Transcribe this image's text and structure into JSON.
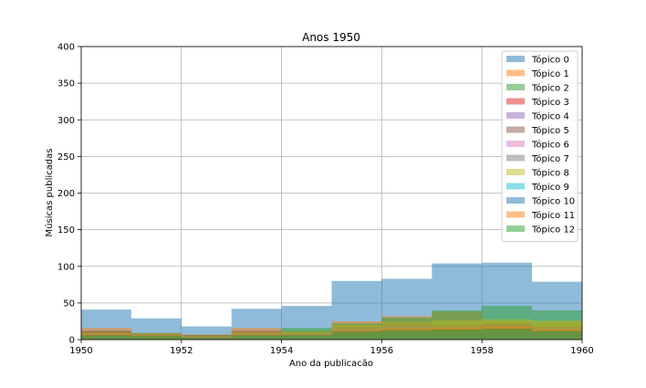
{
  "chart_data": {
    "type": "bar",
    "title": "Anos 1950",
    "xlabel": "Ano da publicacão",
    "ylabel": "Músicas publicadas",
    "xlim": [
      1950,
      1960
    ],
    "ylim": [
      0,
      400
    ],
    "xticks": [
      "1950",
      "1952",
      "1954",
      "1956",
      "1958",
      "1960"
    ],
    "yticks": [
      "0",
      "50",
      "100",
      "150",
      "200",
      "250",
      "300",
      "350",
      "400"
    ],
    "grid": true,
    "legend_position": "top-right",
    "bin_edges": [
      1950,
      1951,
      1952,
      1953,
      1954,
      1955,
      1956,
      1957,
      1958,
      1959,
      1960
    ],
    "series": [
      {
        "name": "Tópico 0",
        "color": "#1f77b4",
        "values": [
          41,
          29,
          18,
          42,
          46,
          80,
          83,
          104,
          105,
          79
        ]
      },
      {
        "name": "Tópico 1",
        "color": "#ff7f0e",
        "values": [
          16,
          9,
          7,
          16,
          12,
          25,
          32,
          38,
          26,
          24
        ]
      },
      {
        "name": "Tópico 2",
        "color": "#2ca02c",
        "values": [
          11,
          9,
          6,
          10,
          16,
          22,
          30,
          40,
          46,
          40
        ]
      },
      {
        "name": "Tópico 3",
        "color": "#d62728",
        "values": [
          10,
          8,
          5,
          8,
          8,
          14,
          16,
          17,
          20,
          14
        ]
      },
      {
        "name": "Tópico 4",
        "color": "#9467bd",
        "values": [
          8,
          7,
          4,
          7,
          8,
          12,
          14,
          15,
          16,
          13
        ]
      },
      {
        "name": "Tópico 5",
        "color": "#8c564b",
        "values": [
          12,
          8,
          6,
          12,
          9,
          18,
          22,
          20,
          22,
          18
        ]
      },
      {
        "name": "Tópico 6",
        "color": "#e377c2",
        "values": [
          6,
          5,
          3,
          6,
          5,
          10,
          12,
          12,
          14,
          11
        ]
      },
      {
        "name": "Tópico 7",
        "color": "#7f7f7f",
        "values": [
          9,
          7,
          5,
          9,
          8,
          16,
          18,
          18,
          20,
          16
        ]
      },
      {
        "name": "Tópico 8",
        "color": "#bcbd22",
        "values": [
          10,
          8,
          5,
          10,
          10,
          20,
          24,
          26,
          28,
          26
        ]
      },
      {
        "name": "Tópico 9",
        "color": "#17becf",
        "values": [
          5,
          4,
          3,
          5,
          5,
          9,
          10,
          11,
          12,
          10
        ]
      },
      {
        "name": "Tópico 10",
        "color": "#1f77b4",
        "values": [
          7,
          6,
          4,
          7,
          7,
          12,
          13,
          14,
          15,
          12
        ]
      },
      {
        "name": "Tópico 11",
        "color": "#ff7f0e",
        "values": [
          8,
          6,
          4,
          8,
          7,
          13,
          15,
          16,
          17,
          14
        ]
      },
      {
        "name": "Tópico 12",
        "color": "#2ca02c",
        "values": [
          6,
          5,
          3,
          6,
          6,
          11,
          13,
          14,
          15,
          12
        ]
      }
    ]
  }
}
